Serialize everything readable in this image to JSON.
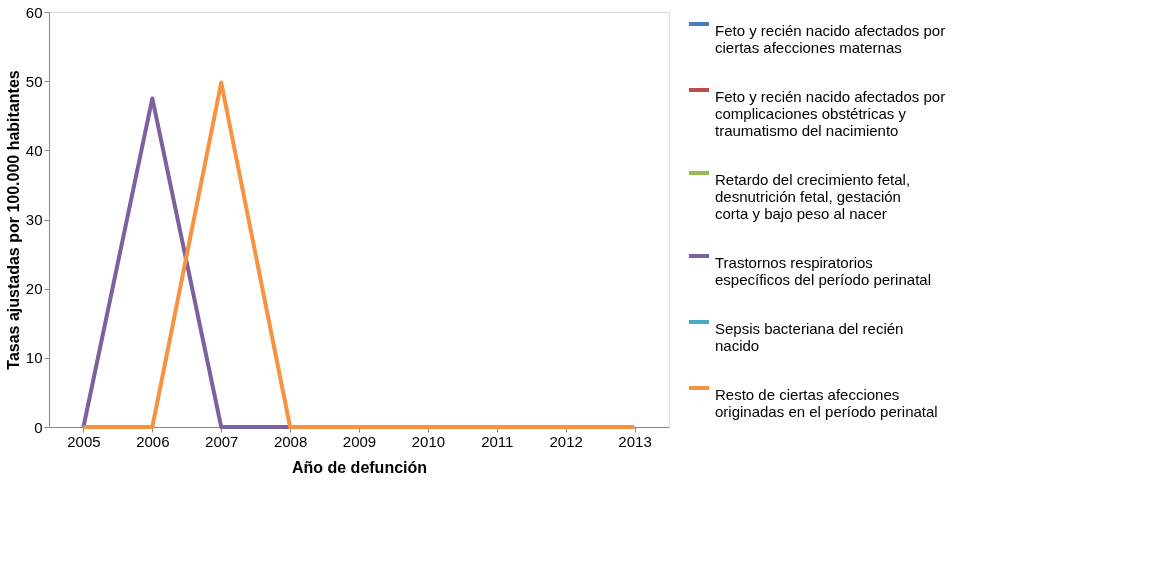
{
  "chart_data": {
    "type": "line",
    "xlabel": "Año de defunción",
    "ylabel": "Tasas ajustadas por 100.000 habitantes",
    "categories": [
      "2005",
      "2006",
      "2007",
      "2008",
      "2009",
      "2010",
      "2011",
      "2012",
      "2013"
    ],
    "ylim": [
      0,
      60
    ],
    "yticks": [
      0,
      10,
      20,
      30,
      40,
      50,
      60
    ],
    "grid": false,
    "legend": "right",
    "marker": "none",
    "line_style": "solid",
    "series": [
      {
        "name": "Feto y recién nacido afectados por ciertas afecciones maternas",
        "color": "#4a7ebb",
        "values": [
          null,
          null,
          null,
          null,
          null,
          null,
          null,
          null,
          null
        ]
      },
      {
        "name": "Feto y recién nacido afectados por complicaciones obstétricas y traumatismo del nacimiento",
        "color": "#be4b48",
        "values": [
          null,
          null,
          null,
          null,
          null,
          null,
          null,
          null,
          null
        ]
      },
      {
        "name": "Retardo del crecimiento fetal, desnutrición fetal, gestación corta y bajo peso al nacer",
        "color": "#98b954",
        "values": [
          null,
          null,
          null,
          null,
          null,
          null,
          null,
          null,
          null
        ]
      },
      {
        "name": "Trastornos respiratorios específicos del período perinatal",
        "color": "#7d60a0",
        "values": [
          0,
          47.5,
          0,
          0,
          null,
          null,
          null,
          null,
          null
        ]
      },
      {
        "name": "Sepsis bacteriana del recién nacido",
        "color": "#46aac5",
        "values": [
          null,
          null,
          null,
          null,
          null,
          null,
          null,
          null,
          null
        ]
      },
      {
        "name": "Resto de ciertas afecciones originadas en el período perinatal",
        "color": "#f69240",
        "values": [
          0,
          0,
          49.8,
          0,
          0,
          0,
          0,
          0,
          0
        ]
      }
    ]
  }
}
